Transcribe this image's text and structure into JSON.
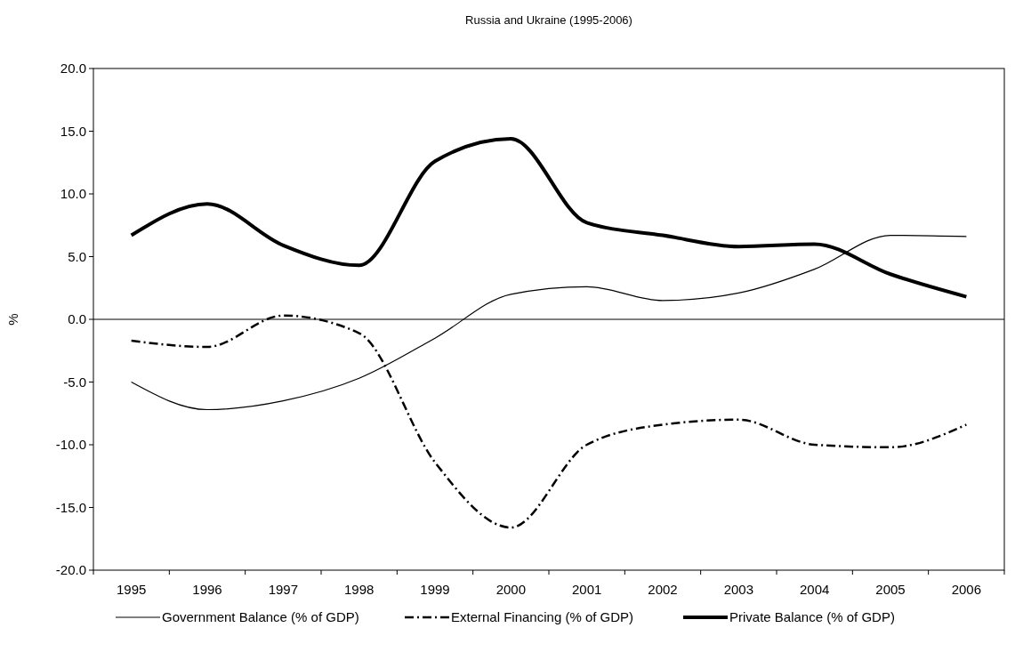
{
  "chart_data": {
    "type": "line",
    "title": "Russia and Ukraine (1995-2006)",
    "ylabel": "%",
    "categories": [
      "1995",
      "1996",
      "1997",
      "1998",
      "1999",
      "2000",
      "2001",
      "2002",
      "2003",
      "2004",
      "2005",
      "2006"
    ],
    "series": [
      {
        "name": "Government Balance (% of GDP)",
        "color": "#000000",
        "line_style": "solid",
        "values": [
          -5.0,
          -7.2,
          -6.5,
          -4.7,
          -1.5,
          2.0,
          2.6,
          1.5,
          2.1,
          4.0,
          6.7,
          6.6
        ]
      },
      {
        "name": "External Financing (% of GDP)",
        "color": "#000000",
        "line_style": "dashed",
        "values": [
          -1.7,
          -2.2,
          0.3,
          -1.1,
          -11.4,
          -16.6,
          -10.0,
          -8.4,
          -8.0,
          -10.0,
          -10.2,
          -8.4
        ]
      },
      {
        "name": "Private Balance (% of GDP)",
        "color": "#000000",
        "line_style": "solid",
        "values": [
          6.7,
          9.2,
          5.9,
          4.3,
          12.6,
          14.4,
          7.7,
          6.7,
          5.8,
          6.0,
          3.6,
          1.8
        ]
      }
    ],
    "ylim": [
      -20,
      20
    ],
    "yticks": [
      {
        "value": -20,
        "label": "-20.0"
      },
      {
        "value": -15,
        "label": "-15.0"
      },
      {
        "value": -10,
        "label": "-10.0"
      },
      {
        "value": -5,
        "label": "-5.0"
      },
      {
        "value": 0,
        "label": "0.0"
      },
      {
        "value": 5,
        "label": "5.0"
      },
      {
        "value": 10,
        "label": "10.0"
      },
      {
        "value": 15,
        "label": "15.0"
      },
      {
        "value": 20,
        "label": "20.0"
      }
    ],
    "legend": "bottom"
  }
}
